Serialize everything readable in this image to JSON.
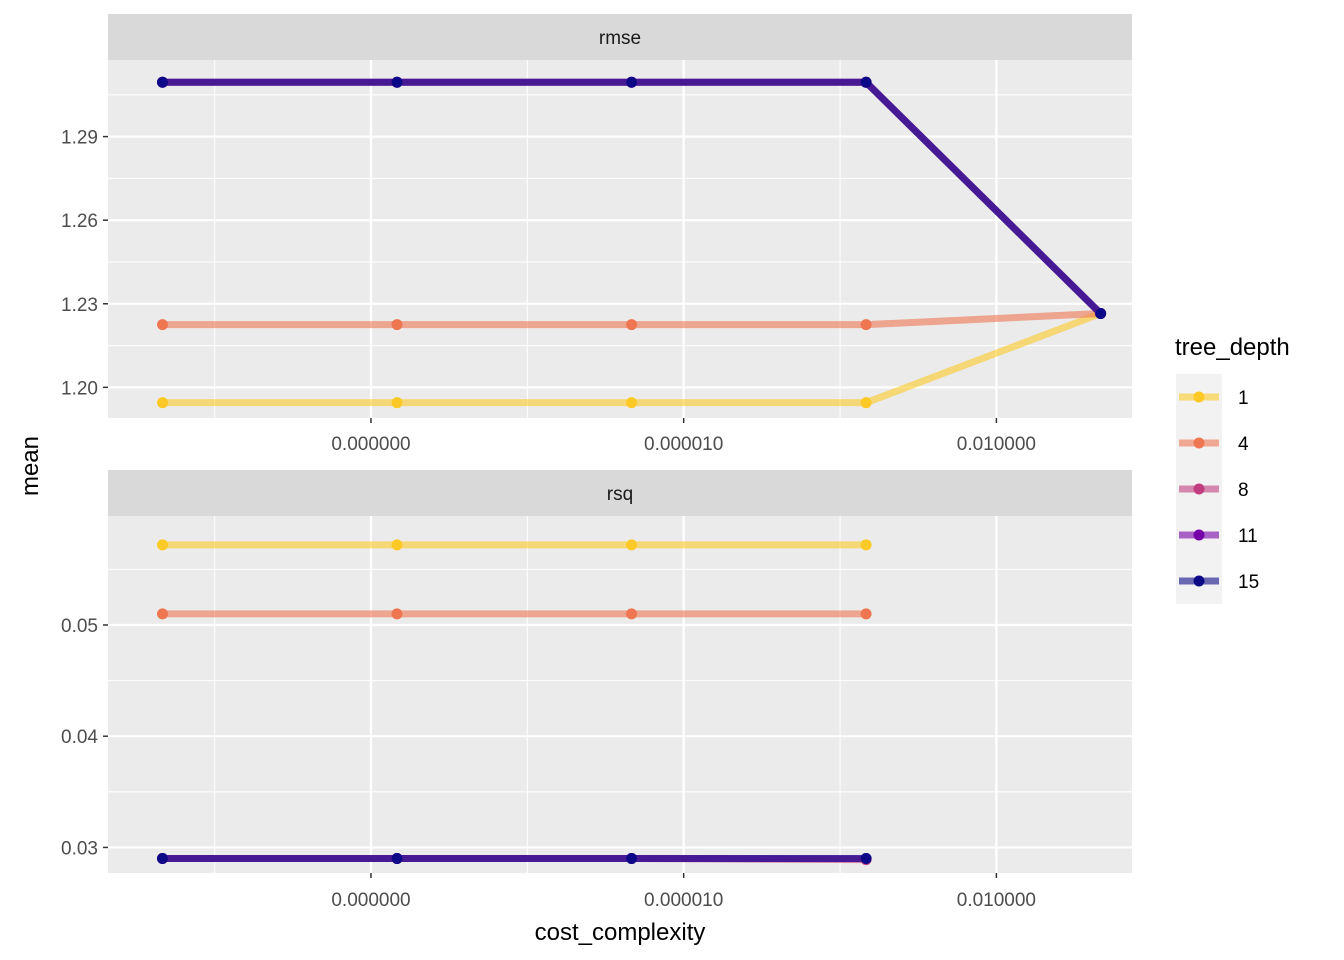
{
  "chart_data": {
    "type": "line",
    "facet_by": "metric",
    "x_label": "cost_complexity",
    "y_label": "mean",
    "x_scale": "log10",
    "x_range": [
      3e-11,
      0.2
    ],
    "x_tick_values": [
      1e-08,
      1e-05,
      0.01
    ],
    "x_tick_labels": [
      "0.000000",
      "0.000010",
      "0.010000"
    ],
    "x": [
      1e-10,
      1.778e-08,
      3.162e-06,
      0.0005623,
      0.1
    ],
    "legend": {
      "title": "tree_depth",
      "position": "right",
      "entries": [
        {
          "label": "1",
          "color": "#FDC926"
        },
        {
          "label": "4",
          "color": "#EE7651"
        },
        {
          "label": "8",
          "color": "#C13F80"
        },
        {
          "label": "11",
          "color": "#7601A8"
        },
        {
          "label": "15",
          "color": "#0D0887"
        }
      ]
    },
    "panels": [
      {
        "metric": "rmse",
        "y_range": [
          1.189,
          1.3175
        ],
        "y_ticks": [
          1.2,
          1.23,
          1.26,
          1.29
        ],
        "y_tick_labels": [
          "1.20",
          "1.23",
          "1.26",
          "1.29"
        ],
        "series": [
          {
            "name": "1",
            "values": [
              1.1945,
              1.1945,
              1.1945,
              1.1945,
              1.2265
            ]
          },
          {
            "name": "4",
            "values": [
              1.2225,
              1.2225,
              1.2225,
              1.2225,
              1.2265
            ]
          },
          {
            "name": "8",
            "values": [
              1.3095,
              1.3095,
              1.3095,
              1.3095,
              1.2265
            ]
          },
          {
            "name": "11",
            "values": [
              1.3095,
              1.3095,
              1.3095,
              1.3095,
              1.2265
            ]
          },
          {
            "name": "15",
            "values": [
              1.3095,
              1.3095,
              1.3095,
              1.3095,
              1.2265
            ]
          }
        ]
      },
      {
        "metric": "rsq",
        "y_range": [
          0.0277,
          0.0598
        ],
        "y_ticks": [
          0.03,
          0.04,
          0.05
        ],
        "y_tick_labels": [
          "0.03",
          "0.04",
          "0.05"
        ],
        "series": [
          {
            "name": "1",
            "values": [
              0.0572,
              0.0572,
              0.0572,
              0.0572,
              null
            ]
          },
          {
            "name": "4",
            "values": [
              0.051,
              0.051,
              0.051,
              0.051,
              null
            ]
          },
          {
            "name": "8",
            "values": [
              0.029,
              0.029,
              0.029,
              0.0289,
              null
            ]
          },
          {
            "name": "11",
            "values": [
              0.029,
              0.029,
              0.029,
              0.029,
              null
            ]
          },
          {
            "name": "15",
            "values": [
              0.029,
              0.029,
              0.029,
              0.029,
              null
            ]
          }
        ]
      }
    ],
    "grid": true,
    "panel_background": "#EBEBEB",
    "strip_background": "#D9D9D9"
  }
}
